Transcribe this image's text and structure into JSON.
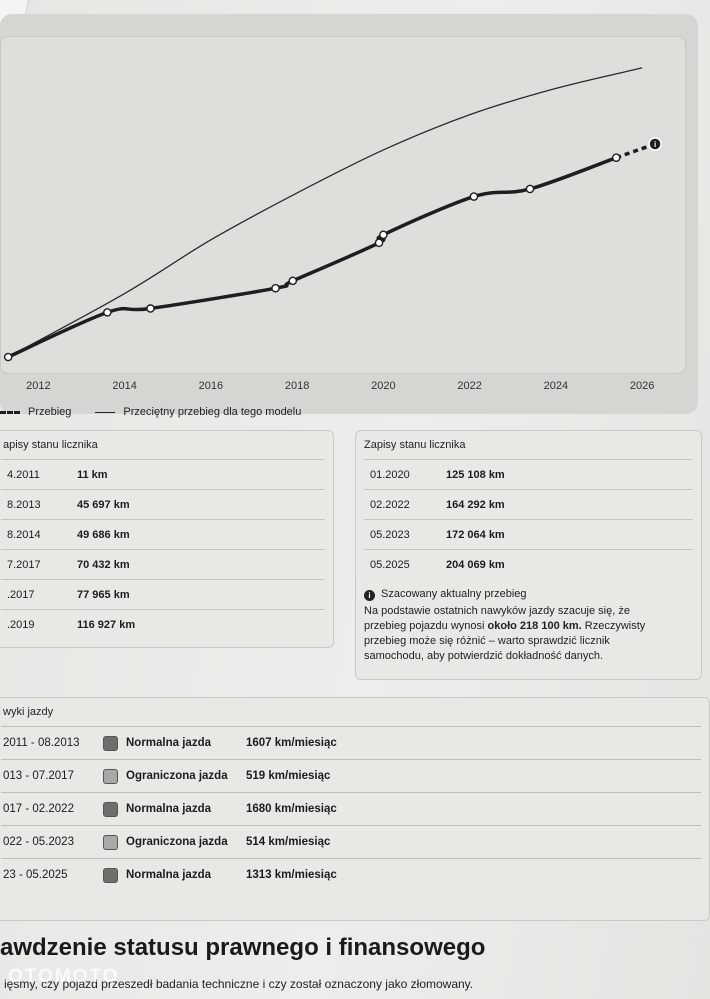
{
  "chart_data": {
    "type": "line",
    "x_ticks": [
      "2012",
      "2014",
      "2016",
      "2018",
      "2020",
      "2022",
      "2024",
      "2026"
    ],
    "xlim": [
      2011.25,
      2026.6
    ],
    "ylim": [
      0,
      300000
    ],
    "series": [
      {
        "name": "Przebieg",
        "style": "dashed-dots",
        "color": "#1e1e1e",
        "points": [
          [
            2011.3,
            11
          ],
          [
            2013.6,
            45697
          ],
          [
            2014.6,
            49686
          ],
          [
            2017.5,
            70432
          ],
          [
            2017.9,
            77965
          ],
          [
            2019.9,
            116927
          ],
          [
            2020.0,
            125108
          ],
          [
            2022.1,
            164292
          ],
          [
            2023.4,
            172064
          ],
          [
            2025.4,
            204069
          ]
        ],
        "estimate": [
          2026.3,
          218100
        ]
      },
      {
        "name": "Przeciętny przebieg dla tego modelu",
        "style": "solid",
        "color": "#2a2a2a",
        "points": [
          [
            2011.3,
            0
          ],
          [
            2014,
            65000
          ],
          [
            2016,
            120000
          ],
          [
            2018,
            168000
          ],
          [
            2020,
            212000
          ],
          [
            2022,
            248000
          ],
          [
            2024,
            275000
          ],
          [
            2026,
            296000
          ]
        ]
      }
    ]
  },
  "legend": {
    "series1": "Przebieg",
    "series2": "Przeciętny przebieg dla tego modelu"
  },
  "odometer_left": {
    "title": "apisy stanu licznika",
    "rows": [
      {
        "date": "4.2011",
        "value": "11 km"
      },
      {
        "date": "8.2013",
        "value": "45 697 km"
      },
      {
        "date": "8.2014",
        "value": "49 686 km"
      },
      {
        "date": "7.2017",
        "value": "70 432 km"
      },
      {
        "date": ".2017",
        "value": "77 965 km"
      },
      {
        "date": ".2019",
        "value": "116 927 km"
      }
    ]
  },
  "odometer_right": {
    "title": "Zapisy stanu licznika",
    "rows": [
      {
        "date": "01.2020",
        "value": "125 108 km"
      },
      {
        "date": "02.2022",
        "value": "164 292 km"
      },
      {
        "date": "05.2023",
        "value": "172 064 km"
      },
      {
        "date": "05.2025",
        "value": "204 069 km"
      }
    ],
    "estimate_title": "Szacowany aktualny przebieg",
    "estimate_text_1": "Na podstawie ostatnich nawyków jazdy szacuje się, że",
    "estimate_text_2a": "przebieg pojazdu wynosi ",
    "estimate_bold": "około 218 100 km.",
    "estimate_text_2b": " Rzeczywisty",
    "estimate_text_3": "przebieg może się różnić – warto sprawdzić licznik",
    "estimate_text_4": "samochodu, aby potwierdzić dokładność danych."
  },
  "habits": {
    "title": "wyki jazdy",
    "colors": {
      "normal": "#6e6e6e",
      "limited": "#a9a9a9"
    },
    "rows": [
      {
        "period": "2011 - 08.2013",
        "type": "Normalna jazda",
        "kind": "normal",
        "rate": "1607 km/miesiąc"
      },
      {
        "period": "013 - 07.2017",
        "type": "Ograniczona jazda",
        "kind": "limited",
        "rate": "519 km/miesiąc"
      },
      {
        "period": "017 - 02.2022",
        "type": "Normalna jazda",
        "kind": "normal",
        "rate": "1680 km/miesiąc"
      },
      {
        "period": "022 - 05.2023",
        "type": "Ograniczona jazda",
        "kind": "limited",
        "rate": "514 km/miesiąc"
      },
      {
        "period": "23 - 05.2025",
        "type": "Normalna jazda",
        "kind": "normal",
        "rate": "1313 km/miesiąc"
      }
    ]
  },
  "section": {
    "heading": "awdzenie statusu prawnego i finansowego",
    "subtitle": "ięsmy, czy pojazd przeszedł badania techniczne i czy został oznaczony jako złomowany."
  },
  "watermark": "OTOMOTO"
}
